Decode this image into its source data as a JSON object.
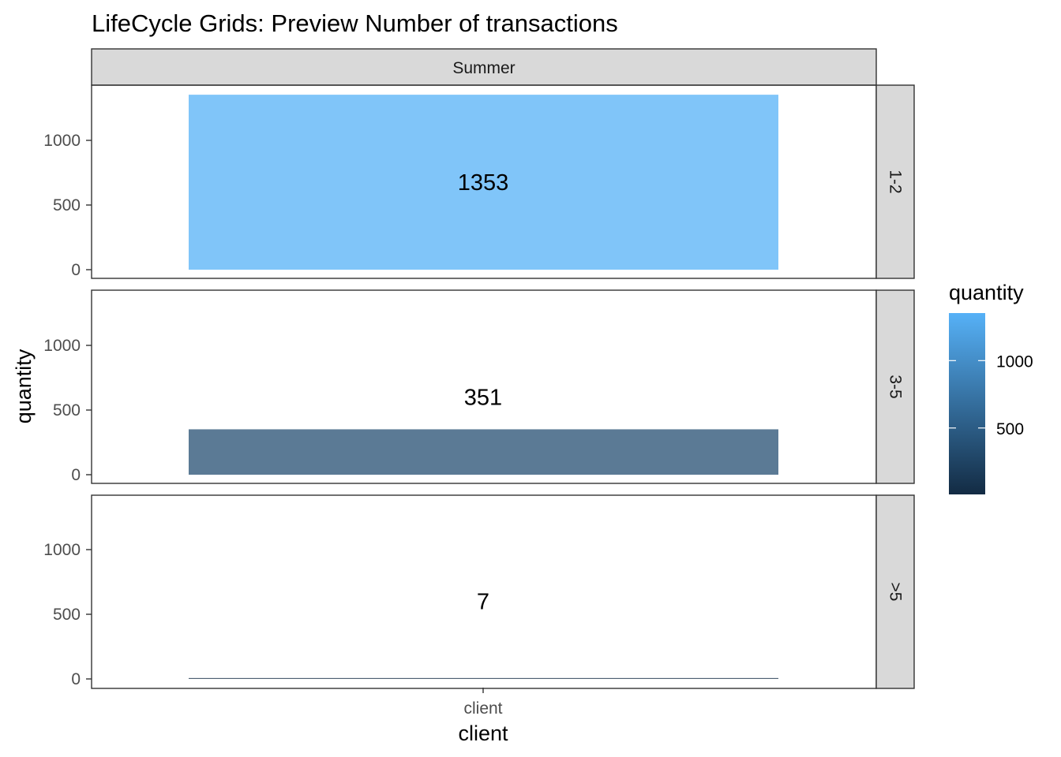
{
  "chart_data": {
    "type": "bar",
    "title": "LifeCycle Grids: Preview Number of transactions",
    "xlabel": "client",
    "ylabel": "quantity",
    "column_facet": "Summer",
    "categories": [
      "client"
    ],
    "ylim": [
      0,
      1420
    ],
    "yticks": [
      0,
      500,
      1000
    ],
    "grid": false,
    "panels": [
      {
        "row_label": "1-2",
        "value": 1353,
        "label": "1353"
      },
      {
        "row_label": "3-5",
        "value": 351,
        "label": "351"
      },
      {
        "row_label": ">5",
        "value": 7,
        "label": "7"
      }
    ],
    "legend": {
      "title": "quantity",
      "placement": "right",
      "breaks": [
        500,
        1000
      ],
      "min": 7,
      "max": 1353,
      "low_color": "#132b43",
      "high_color": "#56b1f7"
    }
  }
}
